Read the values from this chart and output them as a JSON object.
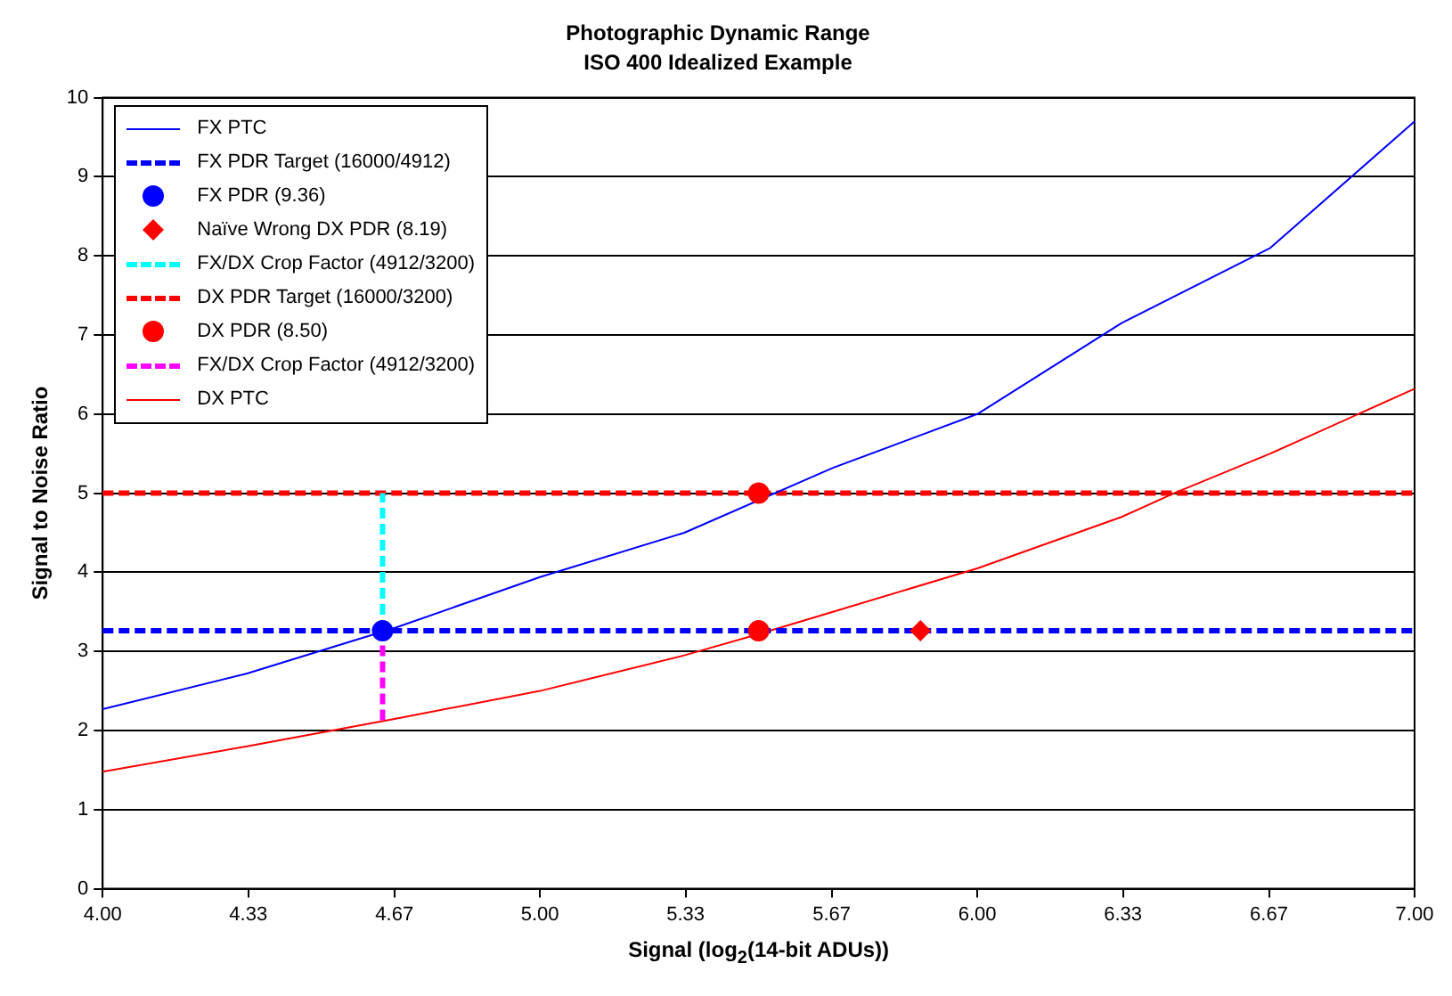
{
  "chart_data": {
    "type": "line",
    "title": "Photographic Dynamic Range",
    "subtitle": "ISO 400 Idealized Example",
    "xlabel": "Signal (log$_{2}$(14-bit ADUs))",
    "ylabel": "Signal to Noise Ratio",
    "xlim": [
      4,
      7
    ],
    "xticks": [
      {
        "value": 4,
        "label": "4.00"
      },
      {
        "value": 4.333,
        "label": "4.33"
      },
      {
        "value": 4.667,
        "label": "4.67"
      },
      {
        "value": 5,
        "label": "5.00"
      },
      {
        "value": 5.333,
        "label": "5.33"
      },
      {
        "value": 5.667,
        "label": "5.67"
      },
      {
        "value": 6,
        "label": "6.00"
      },
      {
        "value": 6.333,
        "label": "6.33"
      },
      {
        "value": 6.667,
        "label": "6.67"
      },
      {
        "value": 7,
        "label": "7.00"
      }
    ],
    "ylim": [
      0,
      10
    ],
    "yticks": [
      0,
      1,
      2,
      3,
      4,
      5,
      6,
      7,
      8,
      9,
      10
    ],
    "grid": "y",
    "legend": "top left",
    "series": [
      {
        "name": "FX PTC",
        "color": "#0000ff",
        "marker": "none",
        "line_style": "solid",
        "x": [
          4,
          4.33,
          4.67,
          5,
          5.33,
          5.67,
          6,
          6.33,
          6.67,
          7
        ],
        "values": [
          2.27,
          2.72,
          3.3,
          3.94,
          4.5,
          5.32,
          6.0,
          7.15,
          8.1,
          9.7
        ]
      },
      {
        "name": "FX PDR Target (16000/4912)",
        "color": "#0000ff",
        "marker": "none",
        "line_style": "dashed",
        "x": [
          4,
          7
        ],
        "values": [
          3.26,
          3.26
        ]
      },
      {
        "name": "FX PDR (9.36)",
        "type": "scatter",
        "color": "#0000ff",
        "marker": "circle",
        "x": [
          4.64
        ],
        "values": [
          3.26
        ]
      },
      {
        "name": "Naïve Wrong DX PDR (8.19)",
        "type": "scatter",
        "color": "#ff0000",
        "marker": "diamond",
        "x": [
          5.87
        ],
        "values": [
          3.26
        ]
      },
      {
        "name": "FX/DX Crop Factor (4912/3200)",
        "color": "#00ffff",
        "marker": "none",
        "line_style": "dashed",
        "x": [
          4.64,
          4.64
        ],
        "values": [
          3.26,
          5.0
        ]
      },
      {
        "name": "DX PDR Target (16000/3200)",
        "color": "#ff0000",
        "marker": "none",
        "line_style": "dashed",
        "x": [
          4,
          7
        ],
        "values": [
          5.0,
          5.0
        ]
      },
      {
        "name": "DX PDR (8.50)",
        "type": "scatter",
        "color": "#ff0000",
        "marker": "circle",
        "x": [
          5.5,
          5.5
        ],
        "values": [
          5.0,
          3.26
        ]
      },
      {
        "name": "FX/DX Crop Factor (4912/3200)",
        "color": "#ff00ff",
        "marker": "none",
        "line_style": "dashed",
        "x": [
          4.64,
          4.64
        ],
        "values": [
          2.13,
          3.26
        ]
      },
      {
        "name": "DX PTC",
        "color": "#ff0000",
        "marker": "none",
        "line_style": "solid",
        "x": [
          4,
          4.33,
          4.67,
          5,
          5.33,
          5.5,
          5.67,
          6,
          6.33,
          6.45,
          6.67,
          7
        ],
        "values": [
          1.48,
          1.8,
          2.15,
          2.5,
          2.95,
          3.22,
          3.5,
          4.05,
          4.7,
          5.0,
          5.5,
          6.32
        ]
      }
    ]
  }
}
